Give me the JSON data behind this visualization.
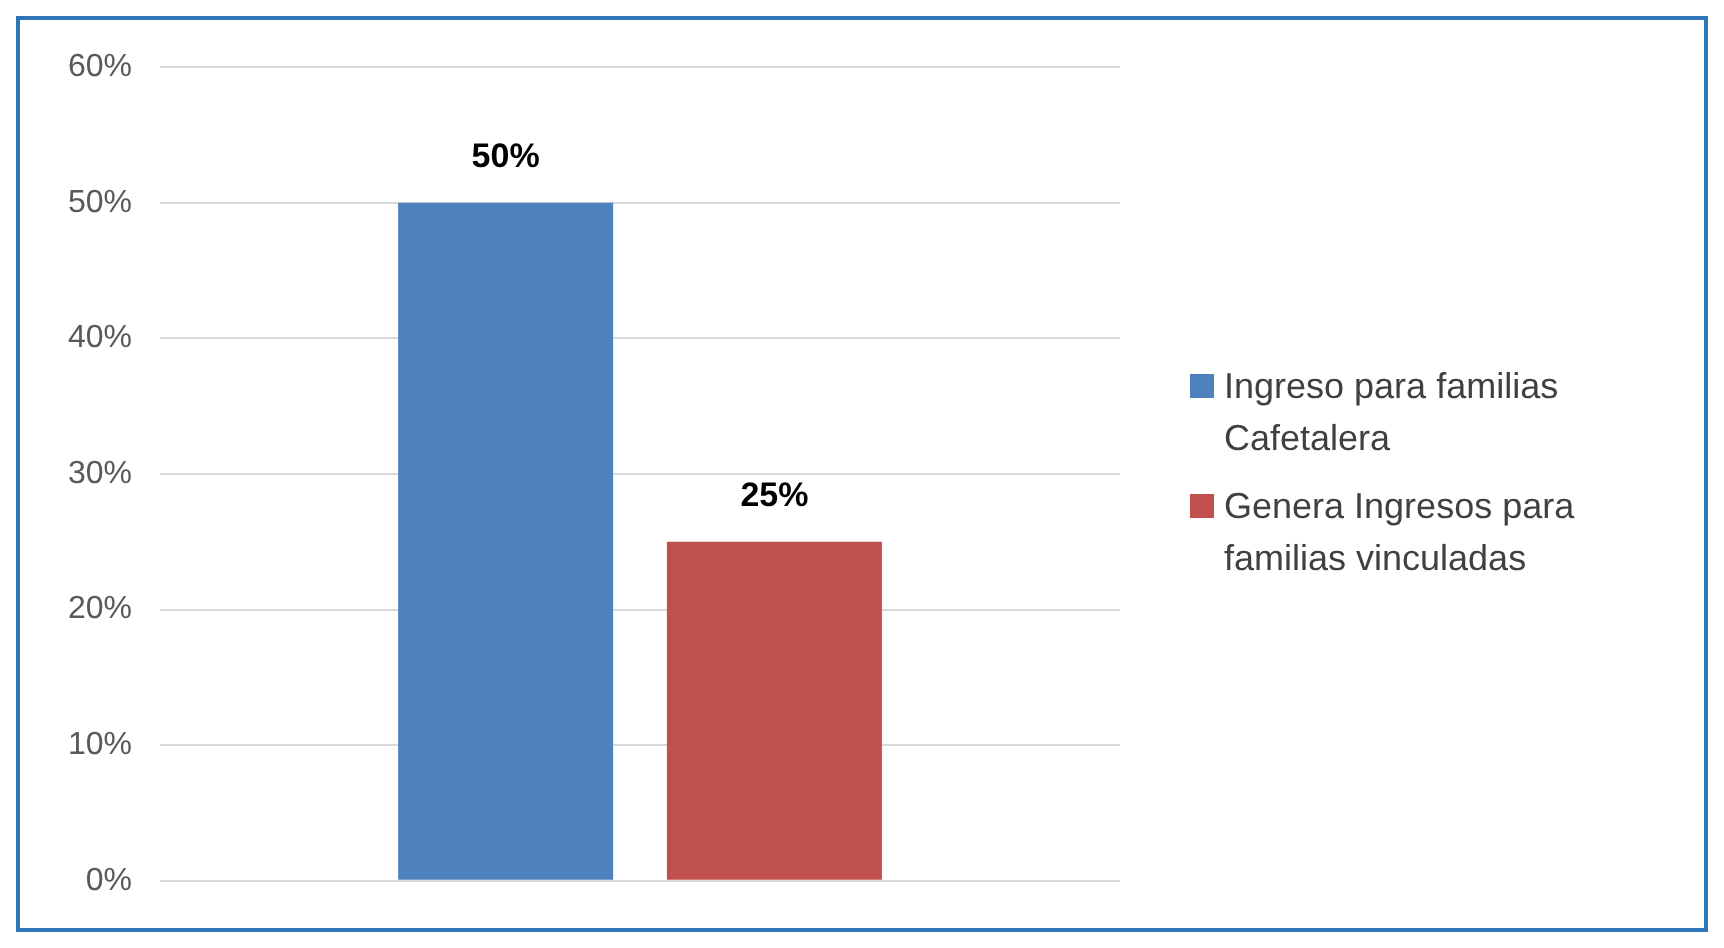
{
  "chart_data": {
    "type": "bar",
    "categories": [
      null
    ],
    "series": [
      {
        "name": "Ingreso para familias Cafetalera",
        "color": "#4f81bd",
        "values": [
          50
        ],
        "value_labels": [
          "50%"
        ]
      },
      {
        "name": "Genera Ingresos para familias vinculadas",
        "color": "#c0504d",
        "values": [
          25
        ],
        "value_labels": [
          "25%"
        ]
      }
    ],
    "ylim": [
      0,
      60
    ],
    "yticks": [
      {
        "value": 0,
        "label": "0%"
      },
      {
        "value": 10,
        "label": "10%"
      },
      {
        "value": 20,
        "label": "20%"
      },
      {
        "value": 30,
        "label": "30%"
      },
      {
        "value": 40,
        "label": "40%"
      },
      {
        "value": 50,
        "label": "50%"
      },
      {
        "value": 60,
        "label": "60%"
      }
    ],
    "grid": "y",
    "legend": "right"
  }
}
